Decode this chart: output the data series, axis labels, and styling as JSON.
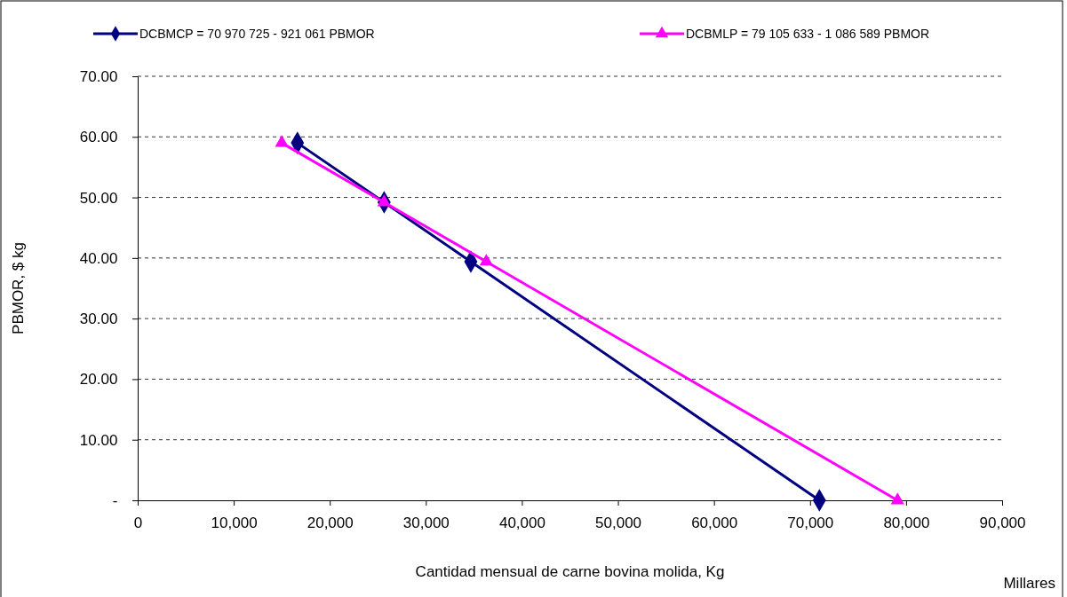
{
  "chart_data": {
    "type": "line",
    "xlabel": "Cantidad mensual de carne bovina molida, Kg",
    "ylabel": "PBMOR,  $ kg",
    "annotations": [
      "Millares"
    ],
    "xlim": [
      0,
      90000
    ],
    "xticks": [
      {
        "value": 0,
        "label": "0"
      },
      {
        "value": 10000,
        "label": "10,000"
      },
      {
        "value": 20000,
        "label": "20,000"
      },
      {
        "value": 30000,
        "label": "30,000"
      },
      {
        "value": 40000,
        "label": "40,000"
      },
      {
        "value": 50000,
        "label": "50,000"
      },
      {
        "value": 60000,
        "label": "60,000"
      },
      {
        "value": 70000,
        "label": "70,000"
      },
      {
        "value": 80000,
        "label": "80,000"
      },
      {
        "value": 90000,
        "label": "90,000"
      }
    ],
    "ylim": [
      0,
      70
    ],
    "yticks": [
      {
        "value": 0,
        "label": "-"
      },
      {
        "value": 10,
        "label": "10.00"
      },
      {
        "value": 20,
        "label": "20.00"
      },
      {
        "value": 30,
        "label": "30.00"
      },
      {
        "value": 40,
        "label": "40.00"
      },
      {
        "value": 50,
        "label": "50.00"
      },
      {
        "value": 60,
        "label": "60.00"
      },
      {
        "value": 70,
        "label": "70.00"
      }
    ],
    "grid": "y",
    "legend": "top",
    "series": [
      {
        "name": "DCBMCP = 70 970 725 - 921 061 PBMOR",
        "color": "#000080",
        "marker": "diamond",
        "x": [
          16628,
          25655,
          34681,
          70971
        ],
        "values": [
          59,
          49.2,
          39.4,
          0
        ]
      },
      {
        "name": "DCBMLP = 79 105 633 - 1 086 589 PBMOR",
        "color": "#ff00ff",
        "marker": "triangle",
        "x": [
          14997,
          25645,
          36294,
          79106
        ],
        "values": [
          59,
          49.2,
          39.4,
          0
        ]
      }
    ]
  }
}
